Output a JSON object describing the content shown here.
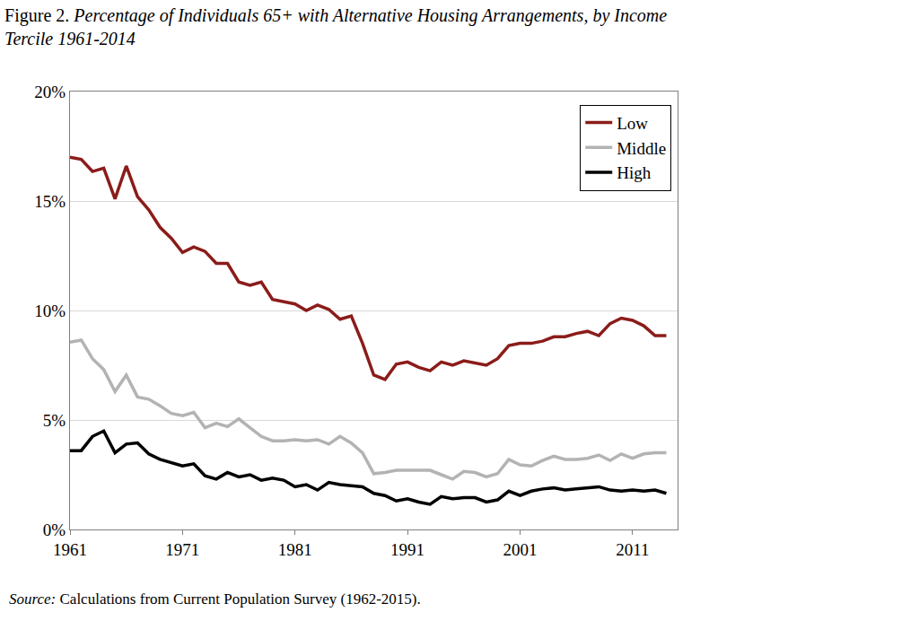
{
  "chart_data": {
    "type": "line",
    "title": "Figure 2. Percentage of Individuals 65+ with Alternative Housing Arrangements, by Income Tercile 1961-2014",
    "annotations": [
      "Source: Calculations from Current Population Survey (1962-2015)."
    ],
    "x": [
      1961,
      1962,
      1963,
      1964,
      1965,
      1966,
      1967,
      1968,
      1969,
      1970,
      1971,
      1972,
      1973,
      1974,
      1975,
      1976,
      1977,
      1978,
      1979,
      1980,
      1981,
      1982,
      1983,
      1984,
      1985,
      1986,
      1987,
      1988,
      1989,
      1990,
      1991,
      1992,
      1993,
      1994,
      1995,
      1996,
      1997,
      1998,
      1999,
      2000,
      2001,
      2002,
      2003,
      2004,
      2005,
      2006,
      2007,
      2008,
      2009,
      2010,
      2011,
      2012,
      2013,
      2014
    ],
    "series": [
      {
        "name": "Low",
        "color": "#8b1c1a",
        "values": [
          17.0,
          16.9,
          16.35,
          16.5,
          15.1,
          16.6,
          15.2,
          14.6,
          13.8,
          13.3,
          12.65,
          12.9,
          12.7,
          12.15,
          12.15,
          11.3,
          11.15,
          11.3,
          10.5,
          10.4,
          10.3,
          10.0,
          10.25,
          10.05,
          9.6,
          9.75,
          8.5,
          7.05,
          6.85,
          7.55,
          7.65,
          7.4,
          7.25,
          7.65,
          7.5,
          7.7,
          7.6,
          7.5,
          7.8,
          8.4,
          8.5,
          8.5,
          8.6,
          8.8,
          8.8,
          8.95,
          9.05,
          8.85,
          9.4,
          9.65,
          9.55,
          9.3,
          8.85,
          8.85
        ]
      },
      {
        "name": "Middle",
        "color": "#b3b3b3",
        "values": [
          8.55,
          8.65,
          7.8,
          7.3,
          6.3,
          7.05,
          6.05,
          5.95,
          5.65,
          5.3,
          5.2,
          5.35,
          4.65,
          4.85,
          4.7,
          5.05,
          4.65,
          4.25,
          4.05,
          4.05,
          4.1,
          4.05,
          4.1,
          3.9,
          4.25,
          3.95,
          3.5,
          2.55,
          2.6,
          2.7,
          2.7,
          2.7,
          2.7,
          2.5,
          2.3,
          2.65,
          2.6,
          2.4,
          2.55,
          3.2,
          2.95,
          2.9,
          3.15,
          3.35,
          3.2,
          3.2,
          3.25,
          3.4,
          3.15,
          3.45,
          3.25,
          3.45,
          3.5,
          3.5
        ]
      },
      {
        "name": "High",
        "color": "#000000",
        "values": [
          3.6,
          3.6,
          4.25,
          4.5,
          3.5,
          3.9,
          3.95,
          3.45,
          3.2,
          3.05,
          2.9,
          3.0,
          2.45,
          2.3,
          2.6,
          2.4,
          2.5,
          2.25,
          2.35,
          2.25,
          1.95,
          2.05,
          1.8,
          2.15,
          2.05,
          2.0,
          1.95,
          1.65,
          1.55,
          1.3,
          1.4,
          1.25,
          1.15,
          1.5,
          1.4,
          1.45,
          1.45,
          1.25,
          1.35,
          1.75,
          1.55,
          1.75,
          1.85,
          1.9,
          1.8,
          1.85,
          1.9,
          1.95,
          1.8,
          1.75,
          1.8,
          1.75,
          1.8,
          1.65
        ]
      }
    ],
    "xlim": [
      1961,
      2015
    ],
    "xticks": [
      1961,
      1971,
      1981,
      1991,
      2001,
      2011
    ],
    "ylim": [
      0,
      20
    ],
    "yticks": [
      {
        "value": 0,
        "label": "0%"
      },
      {
        "value": 5,
        "label": "5%"
      },
      {
        "value": 10,
        "label": "10%"
      },
      {
        "value": 15,
        "label": "15%"
      },
      {
        "value": 20,
        "label": "20%"
      }
    ],
    "grid": true,
    "legend": "top right"
  }
}
